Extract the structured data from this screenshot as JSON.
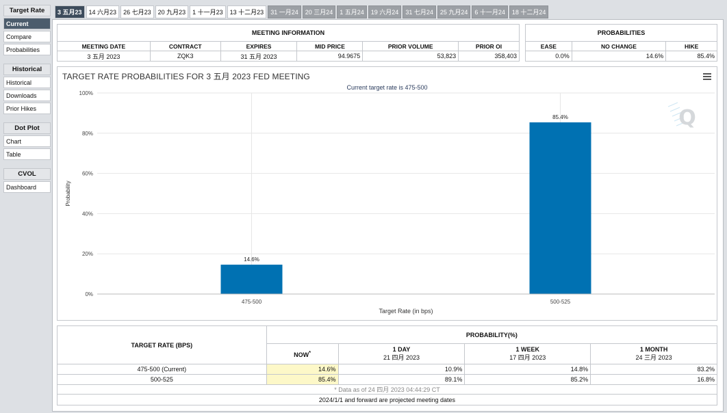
{
  "sidebar": {
    "sections": [
      {
        "title": "Target Rate",
        "items": [
          {
            "label": "Current",
            "active": true
          },
          {
            "label": "Compare"
          },
          {
            "label": "Probabilities"
          }
        ]
      },
      {
        "title": "Historical",
        "items": [
          {
            "label": "Historical"
          },
          {
            "label": "Downloads"
          },
          {
            "label": "Prior Hikes"
          }
        ]
      },
      {
        "title": "Dot Plot",
        "items": [
          {
            "label": "Chart"
          },
          {
            "label": "Table"
          }
        ]
      },
      {
        "title": "CVOL",
        "items": [
          {
            "label": "Dashboard"
          }
        ]
      }
    ]
  },
  "tabs": [
    {
      "label": "3 五月23",
      "state": "active"
    },
    {
      "label": "14 六月23",
      "state": "normal"
    },
    {
      "label": "26 七月23",
      "state": "normal"
    },
    {
      "label": "20 九月23",
      "state": "normal"
    },
    {
      "label": "1 十一月23",
      "state": "normal"
    },
    {
      "label": "13 十二月23",
      "state": "normal"
    },
    {
      "label": "31 一月24",
      "state": "future"
    },
    {
      "label": "20 三月24",
      "state": "future"
    },
    {
      "label": "1 五月24",
      "state": "future"
    },
    {
      "label": "19 六月24",
      "state": "future"
    },
    {
      "label": "31 七月24",
      "state": "future"
    },
    {
      "label": "25 九月24",
      "state": "future"
    },
    {
      "label": "6 十一月24",
      "state": "future"
    },
    {
      "label": "18 十二月24",
      "state": "future"
    }
  ],
  "meeting": {
    "section_title": "MEETING INFORMATION",
    "headers": [
      "MEETING DATE",
      "CONTRACT",
      "EXPIRES",
      "MID PRICE",
      "PRIOR VOLUME",
      "PRIOR OI"
    ],
    "row": [
      "3 五月 2023",
      "ZQK3",
      "31 五月 2023",
      "94.9675",
      "53,823",
      "358,403"
    ]
  },
  "probabilities": {
    "section_title": "PROBABILITIES",
    "headers": [
      "EASE",
      "NO CHANGE",
      "HIKE"
    ],
    "row": [
      "0.0%",
      "14.6%",
      "85.4%"
    ]
  },
  "chart": {
    "title": "TARGET RATE PROBABILITIES FOR 3 五月 2023 FED MEETING",
    "subtitle": "Current target rate is 475-500",
    "watermark": "Q"
  },
  "chart_data": {
    "type": "bar",
    "categories": [
      "475-500",
      "500-525"
    ],
    "values": [
      14.6,
      85.4
    ],
    "data_labels": [
      "14.6%",
      "85.4%"
    ],
    "xlabel": "Target Rate (in bps)",
    "ylabel": "Probability",
    "ylim": [
      0,
      100
    ],
    "yticks": [
      "0%",
      "20%",
      "40%",
      "60%",
      "80%",
      "100%"
    ],
    "bar_color": "#0071b2",
    "grid": true
  },
  "history": {
    "col_target": "TARGET RATE (BPS)",
    "group_title": "PROBABILITY(%)",
    "cols": [
      {
        "label": "NOW",
        "sup": "*",
        "date": ""
      },
      {
        "label": "1 DAY",
        "date": "21 四月 2023"
      },
      {
        "label": "1 WEEK",
        "date": "17 四月 2023"
      },
      {
        "label": "1 MONTH",
        "date": "24 三月 2023"
      }
    ],
    "rows": [
      {
        "rate": "475-500 (Current)",
        "values": [
          "14.6%",
          "10.9%",
          "14.8%",
          "83.2%"
        ]
      },
      {
        "rate": "500-525",
        "values": [
          "85.4%",
          "89.1%",
          "85.2%",
          "16.8%"
        ]
      }
    ],
    "footnote": "* Data as of 24 四月 2023 04:44:29 CT",
    "note": "2024/1/1 and forward are projected meeting dates"
  }
}
